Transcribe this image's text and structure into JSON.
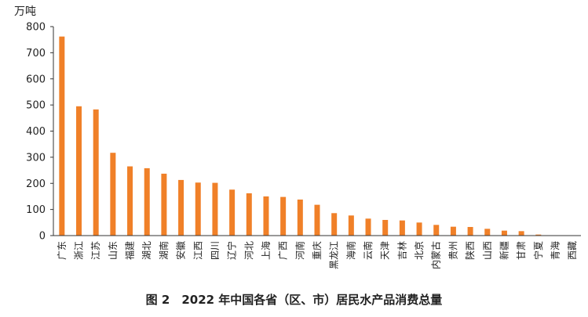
{
  "chart_data": {
    "type": "bar",
    "unit_label": "万吨",
    "caption": "图 2　2022 年中国各省（区、市）居民水产品消费总量",
    "categories": [
      "广东",
      "浙江",
      "江苏",
      "山东",
      "福建",
      "湖北",
      "湖南",
      "安徽",
      "江西",
      "四川",
      "辽宁",
      "河北",
      "上海",
      "广西",
      "河南",
      "重庆",
      "黑龙江",
      "海南",
      "云南",
      "天津",
      "吉林",
      "北京",
      "内蒙古",
      "贵州",
      "陕西",
      "山西",
      "新疆",
      "甘肃",
      "宁夏",
      "青海",
      "西藏"
    ],
    "values": [
      762,
      495,
      483,
      317,
      265,
      258,
      237,
      213,
      203,
      202,
      176,
      162,
      150,
      148,
      138,
      118,
      86,
      77,
      65,
      60,
      58,
      50,
      41,
      34,
      33,
      26,
      19,
      17,
      4,
      1,
      1
    ],
    "ylim": [
      0,
      800
    ],
    "yticks": [
      0,
      100,
      200,
      300,
      400,
      500,
      600,
      700,
      800
    ],
    "bar_color": "#F08028",
    "grid": false,
    "legend": "none"
  }
}
